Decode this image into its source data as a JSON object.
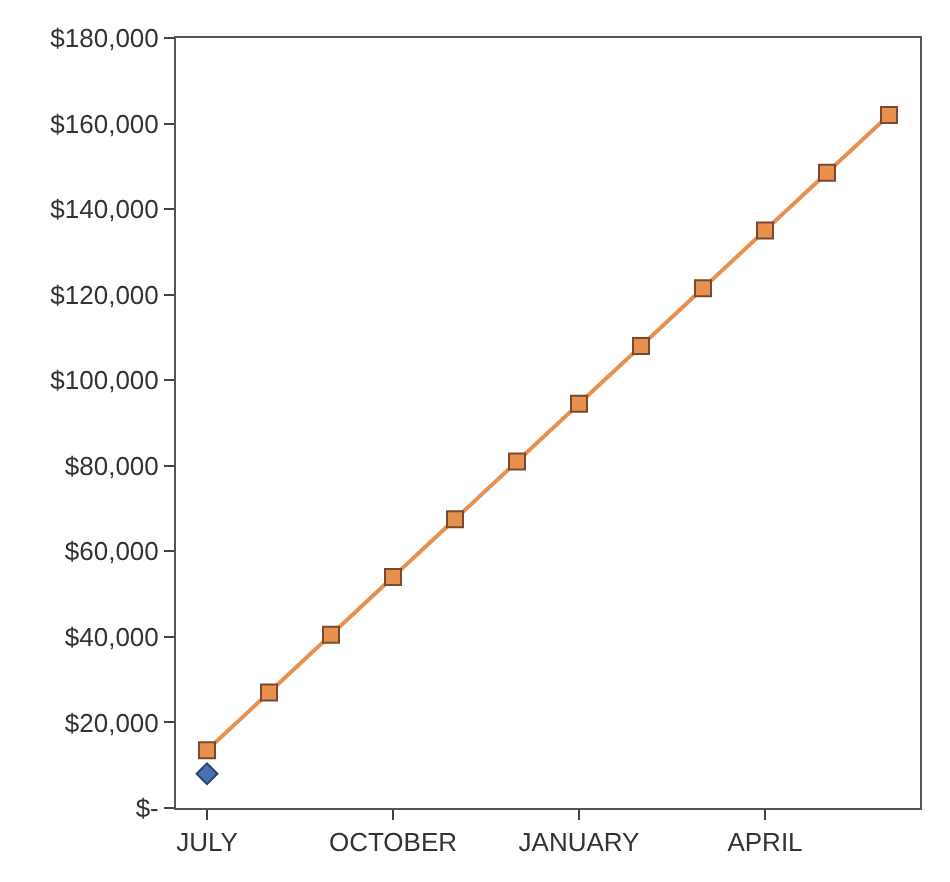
{
  "chart_data": {
    "type": "line",
    "categories": [
      "JULY",
      null,
      null,
      "OCTOBER",
      null,
      null,
      "JANUARY",
      null,
      null,
      "APRIL",
      null,
      null
    ],
    "series": [
      {
        "color": "#e8914f",
        "marker": "square",
        "values": [
          13500,
          27000,
          40500,
          54000,
          67500,
          81000,
          94500,
          108000,
          121500,
          135000,
          148500,
          162000
        ]
      },
      {
        "type": "scatter",
        "color": "#4a6fb5",
        "marker": "diamond",
        "values": [
          8000,
          null,
          null,
          null,
          null,
          null,
          null,
          null,
          null,
          null,
          null,
          null
        ]
      }
    ],
    "ylim": [
      0,
      180000
    ],
    "yticks": [
      {
        "value": 0,
        "label": "$-"
      },
      {
        "value": 20000,
        "label": "$20,000"
      },
      {
        "value": 40000,
        "label": "$40,000"
      },
      {
        "value": 60000,
        "label": "$60,000"
      },
      {
        "value": 80000,
        "label": "$80,000"
      },
      {
        "value": 100000,
        "label": "$100,000"
      },
      {
        "value": 120000,
        "label": "$120,000"
      },
      {
        "value": 140000,
        "label": "$140,000"
      },
      {
        "value": 160000,
        "label": "$160,000"
      },
      {
        "value": 180000,
        "label": "$180,000"
      }
    ]
  }
}
